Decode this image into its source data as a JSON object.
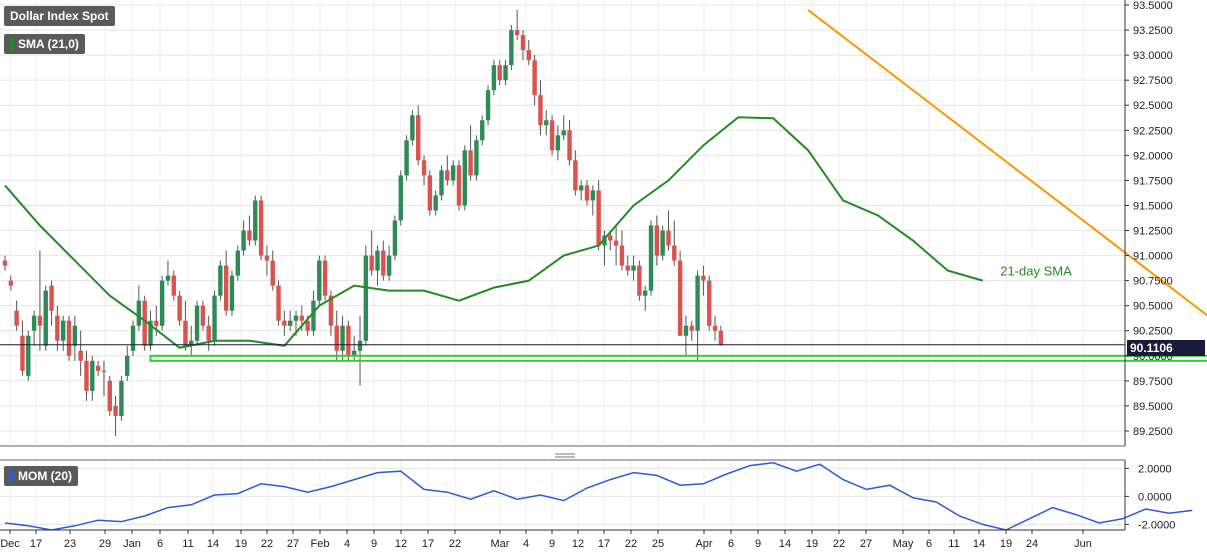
{
  "chart_data": [
    {
      "type": "candlestick",
      "title": "Dollar Index Spot",
      "indicator_label": "SMA (21,0)",
      "y_ticks": [
        "93.5000",
        "93.2500",
        "93.0000",
        "92.7500",
        "92.5000",
        "92.2500",
        "92.0000",
        "91.7500",
        "91.5000",
        "91.2500",
        "91.0000",
        "90.7500",
        "90.5000",
        "90.2500",
        "90.0000",
        "89.7500",
        "89.5000",
        "89.2500"
      ],
      "ylim": [
        89.1,
        93.55
      ],
      "last_price": "90.1106",
      "x_ticks": [
        "Dec",
        "17",
        "23",
        "29",
        "Jan",
        "6",
        "11",
        "14",
        "19",
        "22",
        "27",
        "Feb",
        "4",
        "9",
        "12",
        "17",
        "22",
        "Mar",
        "4",
        "9",
        "12",
        "17",
        "22",
        "25",
        "Apr",
        "6",
        "9",
        "14",
        "19",
        "22",
        "27",
        "May",
        "6",
        "11",
        "14",
        "19",
        "24",
        "Jun"
      ],
      "annotation": "21-day SMA",
      "candles": [
        [
          90.95,
          91.0,
          90.85,
          90.9
        ],
        [
          90.75,
          90.8,
          90.65,
          90.7
        ],
        [
          90.45,
          90.55,
          90.25,
          90.3
        ],
        [
          90.2,
          90.35,
          89.8,
          89.85
        ],
        [
          89.8,
          90.25,
          89.75,
          90.2
        ],
        [
          90.25,
          90.45,
          90.1,
          90.4
        ],
        [
          90.4,
          91.05,
          90.05,
          90.3
        ],
        [
          90.1,
          90.7,
          90.05,
          90.65
        ],
        [
          90.7,
          90.75,
          90.3,
          90.45
        ],
        [
          90.4,
          90.5,
          90.05,
          90.15
        ],
        [
          90.15,
          90.4,
          90.05,
          90.35
        ],
        [
          90.35,
          90.4,
          89.95,
          90.0
        ],
        [
          90.1,
          90.4,
          89.95,
          90.3
        ],
        [
          90.05,
          90.25,
          89.8,
          89.95
        ],
        [
          89.95,
          90.05,
          89.55,
          89.65
        ],
        [
          89.65,
          90.0,
          89.55,
          89.95
        ],
        [
          89.9,
          89.95,
          89.8,
          89.85
        ],
        [
          89.85,
          89.95,
          89.6,
          89.85
        ],
        [
          89.75,
          89.8,
          89.4,
          89.45
        ],
        [
          89.5,
          89.6,
          89.2,
          89.4
        ],
        [
          89.4,
          89.8,
          89.35,
          89.75
        ],
        [
          89.8,
          90.1,
          89.75,
          90.0
        ],
        [
          90.05,
          90.35,
          90.0,
          90.3
        ],
        [
          90.3,
          90.7,
          90.25,
          90.55
        ],
        [
          90.55,
          90.6,
          90.05,
          90.1
        ],
        [
          90.1,
          90.45,
          90.05,
          90.35
        ],
        [
          90.35,
          90.5,
          90.2,
          90.3
        ],
        [
          90.3,
          90.8,
          90.25,
          90.75
        ],
        [
          90.75,
          90.95,
          90.7,
          90.8
        ],
        [
          90.8,
          90.85,
          90.55,
          90.6
        ],
        [
          90.6,
          90.65,
          90.3,
          90.35
        ],
        [
          90.35,
          90.55,
          90.05,
          90.1
        ],
        [
          90.1,
          90.3,
          90.0,
          90.15
        ],
        [
          90.15,
          90.55,
          90.1,
          90.5
        ],
        [
          90.5,
          90.55,
          90.25,
          90.3
        ],
        [
          90.3,
          90.4,
          90.05,
          90.15
        ],
        [
          90.15,
          90.65,
          90.1,
          90.6
        ],
        [
          90.6,
          90.95,
          90.55,
          90.9
        ],
        [
          90.9,
          91.05,
          90.4,
          90.45
        ],
        [
          90.45,
          90.85,
          90.4,
          90.8
        ],
        [
          90.8,
          91.1,
          90.75,
          91.05
        ],
        [
          91.05,
          91.35,
          91.0,
          91.25
        ],
        [
          91.25,
          91.4,
          91.1,
          91.15
        ],
        [
          91.15,
          91.6,
          91.1,
          91.55
        ],
        [
          91.55,
          91.6,
          90.95,
          91.0
        ],
        [
          91.0,
          91.1,
          90.8,
          90.95
        ],
        [
          90.95,
          91.05,
          90.65,
          90.7
        ],
        [
          90.7,
          90.75,
          90.3,
          90.35
        ],
        [
          90.35,
          90.45,
          90.2,
          90.3
        ],
        [
          90.3,
          90.45,
          90.25,
          90.35
        ],
        [
          90.35,
          90.45,
          90.2,
          90.4
        ],
        [
          90.4,
          90.5,
          90.25,
          90.35
        ],
        [
          90.35,
          90.4,
          90.2,
          90.25
        ],
        [
          90.25,
          90.65,
          90.2,
          90.55
        ],
        [
          90.55,
          91.0,
          90.5,
          90.95
        ],
        [
          90.95,
          91.0,
          90.55,
          90.6
        ],
        [
          90.6,
          90.65,
          90.2,
          90.3
        ],
        [
          90.3,
          90.45,
          89.95,
          90.05
        ],
        [
          90.05,
          90.4,
          89.95,
          90.3
        ],
        [
          90.3,
          90.35,
          89.95,
          90.0
        ],
        [
          90.0,
          90.2,
          89.95,
          90.05
        ],
        [
          90.05,
          90.4,
          89.7,
          90.15
        ],
        [
          90.15,
          91.1,
          90.1,
          91.0
        ],
        [
          91.0,
          91.25,
          90.8,
          90.85
        ],
        [
          90.85,
          91.1,
          90.7,
          91.05
        ],
        [
          91.05,
          91.15,
          90.75,
          90.8
        ],
        [
          90.8,
          91.1,
          90.75,
          91.0
        ],
        [
          91.0,
          91.4,
          90.95,
          91.35
        ],
        [
          91.35,
          91.85,
          91.3,
          91.8
        ],
        [
          91.8,
          92.2,
          91.75,
          92.15
        ],
        [
          92.15,
          92.45,
          92.1,
          92.4
        ],
        [
          92.4,
          92.5,
          91.9,
          91.95
        ],
        [
          91.95,
          92.0,
          91.7,
          91.8
        ],
        [
          91.8,
          91.85,
          91.4,
          91.45
        ],
        [
          91.45,
          91.65,
          91.4,
          91.6
        ],
        [
          91.6,
          91.9,
          91.55,
          91.85
        ],
        [
          91.85,
          92.0,
          91.7,
          91.75
        ],
        [
          91.75,
          91.95,
          91.7,
          91.9
        ],
        [
          91.9,
          91.95,
          91.45,
          91.5
        ],
        [
          91.5,
          92.1,
          91.45,
          92.05
        ],
        [
          92.05,
          92.3,
          91.75,
          91.8
        ],
        [
          91.8,
          92.2,
          91.75,
          92.15
        ],
        [
          92.15,
          92.4,
          92.1,
          92.35
        ],
        [
          92.35,
          92.7,
          92.3,
          92.65
        ],
        [
          92.65,
          92.95,
          92.6,
          92.9
        ],
        [
          92.9,
          92.95,
          92.7,
          92.75
        ],
        [
          92.75,
          92.95,
          92.7,
          92.9
        ],
        [
          92.9,
          93.3,
          92.85,
          93.25
        ],
        [
          93.25,
          93.45,
          93.15,
          93.2
        ],
        [
          93.2,
          93.25,
          92.95,
          93.05
        ],
        [
          93.05,
          93.15,
          92.9,
          92.95
        ],
        [
          92.95,
          93.0,
          92.5,
          92.6
        ],
        [
          92.6,
          92.75,
          92.2,
          92.3
        ],
        [
          92.3,
          92.45,
          92.2,
          92.35
        ],
        [
          92.35,
          92.4,
          92.0,
          92.05
        ],
        [
          92.05,
          92.3,
          91.95,
          92.2
        ],
        [
          92.2,
          92.4,
          92.15,
          92.25
        ],
        [
          92.25,
          92.35,
          91.9,
          91.95
        ],
        [
          91.95,
          92.05,
          91.6,
          91.65
        ],
        [
          91.65,
          91.75,
          91.55,
          91.7
        ],
        [
          91.7,
          91.75,
          91.5,
          91.55
        ],
        [
          91.55,
          91.7,
          91.4,
          91.65
        ],
        [
          91.65,
          91.75,
          91.05,
          91.1
        ],
        [
          91.1,
          91.25,
          90.9,
          91.2
        ],
        [
          91.2,
          91.25,
          91.05,
          91.15
        ],
        [
          91.15,
          91.3,
          90.9,
          91.1
        ],
        [
          91.1,
          91.25,
          90.85,
          90.9
        ],
        [
          90.9,
          91.0,
          90.8,
          90.85
        ],
        [
          90.85,
          91.0,
          90.75,
          90.9
        ],
        [
          90.9,
          90.95,
          90.55,
          90.6
        ],
        [
          90.6,
          90.7,
          90.45,
          90.65
        ],
        [
          90.65,
          91.35,
          90.6,
          91.3
        ],
        [
          91.3,
          91.4,
          90.9,
          91.0
        ],
        [
          91.0,
          91.3,
          90.95,
          91.25
        ],
        [
          91.25,
          91.45,
          91.05,
          91.1
        ],
        [
          91.1,
          91.35,
          90.9,
          90.95
        ],
        [
          90.95,
          91.05,
          90.2,
          90.2
        ],
        [
          90.2,
          90.4,
          90.0,
          90.3
        ],
        [
          90.3,
          90.35,
          90.15,
          90.25
        ],
        [
          90.25,
          90.85,
          89.95,
          90.8
        ],
        [
          90.8,
          90.9,
          90.6,
          90.75
        ],
        [
          90.75,
          90.8,
          90.25,
          90.3
        ],
        [
          90.3,
          90.4,
          90.15,
          90.25
        ],
        [
          90.25,
          90.3,
          90.1,
          90.11
        ]
      ],
      "sma_anchors": [
        [
          0,
          91.7
        ],
        [
          6,
          91.3
        ],
        [
          12,
          90.95
        ],
        [
          18,
          90.6
        ],
        [
          24,
          90.35
        ],
        [
          30,
          90.08
        ],
        [
          36,
          90.15
        ],
        [
          42,
          90.15
        ],
        [
          48,
          90.1
        ],
        [
          54,
          90.5
        ],
        [
          60,
          90.7
        ],
        [
          66,
          90.65
        ],
        [
          72,
          90.65
        ],
        [
          78,
          90.55
        ],
        [
          84,
          90.68
        ],
        [
          90,
          90.75
        ],
        [
          96,
          91.0
        ],
        [
          102,
          91.1
        ],
        [
          108,
          91.5
        ],
        [
          114,
          91.75
        ],
        [
          120,
          92.1
        ],
        [
          126,
          92.38
        ],
        [
          132,
          92.37
        ],
        [
          138,
          92.05
        ],
        [
          144,
          91.55
        ],
        [
          150,
          91.4
        ],
        [
          156,
          91.15
        ],
        [
          162,
          90.85
        ],
        [
          168,
          90.75
        ]
      ],
      "trendline": {
        "from": [
          138,
          93.45
        ],
        "to": [
          210,
          90.25
        ]
      },
      "support_zone": {
        "from_index": 25,
        "to_index": 210,
        "y_top": 90.0,
        "y_bottom": 89.95
      }
    },
    {
      "type": "line",
      "title": "MOM (20)",
      "y_ticks": [
        "2.0000",
        "0.0000",
        "-2.0000"
      ],
      "ylim": [
        -2.4,
        2.6
      ],
      "mom_anchors": [
        [
          0,
          -1.9
        ],
        [
          4,
          -2.1
        ],
        [
          8,
          -2.4
        ],
        [
          12,
          -2.1
        ],
        [
          16,
          -1.7
        ],
        [
          20,
          -1.8
        ],
        [
          24,
          -1.4
        ],
        [
          28,
          -0.8
        ],
        [
          32,
          -0.6
        ],
        [
          36,
          0.1
        ],
        [
          40,
          0.2
        ],
        [
          44,
          0.9
        ],
        [
          48,
          0.7
        ],
        [
          52,
          0.3
        ],
        [
          56,
          0.7
        ],
        [
          60,
          1.2
        ],
        [
          64,
          1.7
        ],
        [
          68,
          1.8
        ],
        [
          72,
          0.5
        ],
        [
          76,
          0.3
        ],
        [
          80,
          -0.2
        ],
        [
          84,
          0.4
        ],
        [
          88,
          -0.2
        ],
        [
          92,
          0.1
        ],
        [
          96,
          -0.3
        ],
        [
          100,
          0.6
        ],
        [
          104,
          1.2
        ],
        [
          108,
          1.7
        ],
        [
          112,
          1.5
        ],
        [
          116,
          0.8
        ],
        [
          120,
          0.9
        ],
        [
          124,
          1.6
        ],
        [
          128,
          2.2
        ],
        [
          132,
          2.4
        ],
        [
          136,
          1.8
        ],
        [
          140,
          2.3
        ],
        [
          144,
          1.2
        ],
        [
          148,
          0.5
        ],
        [
          152,
          0.8
        ],
        [
          156,
          -0.1
        ],
        [
          160,
          -0.4
        ],
        [
          164,
          -1.4
        ],
        [
          168,
          -2.0
        ],
        [
          172,
          -2.4
        ],
        [
          176,
          -1.6
        ],
        [
          180,
          -0.8
        ],
        [
          184,
          -1.3
        ],
        [
          188,
          -1.9
        ],
        [
          192,
          -1.6
        ],
        [
          196,
          -0.9
        ],
        [
          200,
          -1.2
        ],
        [
          204,
          -1.0
        ]
      ]
    }
  ]
}
